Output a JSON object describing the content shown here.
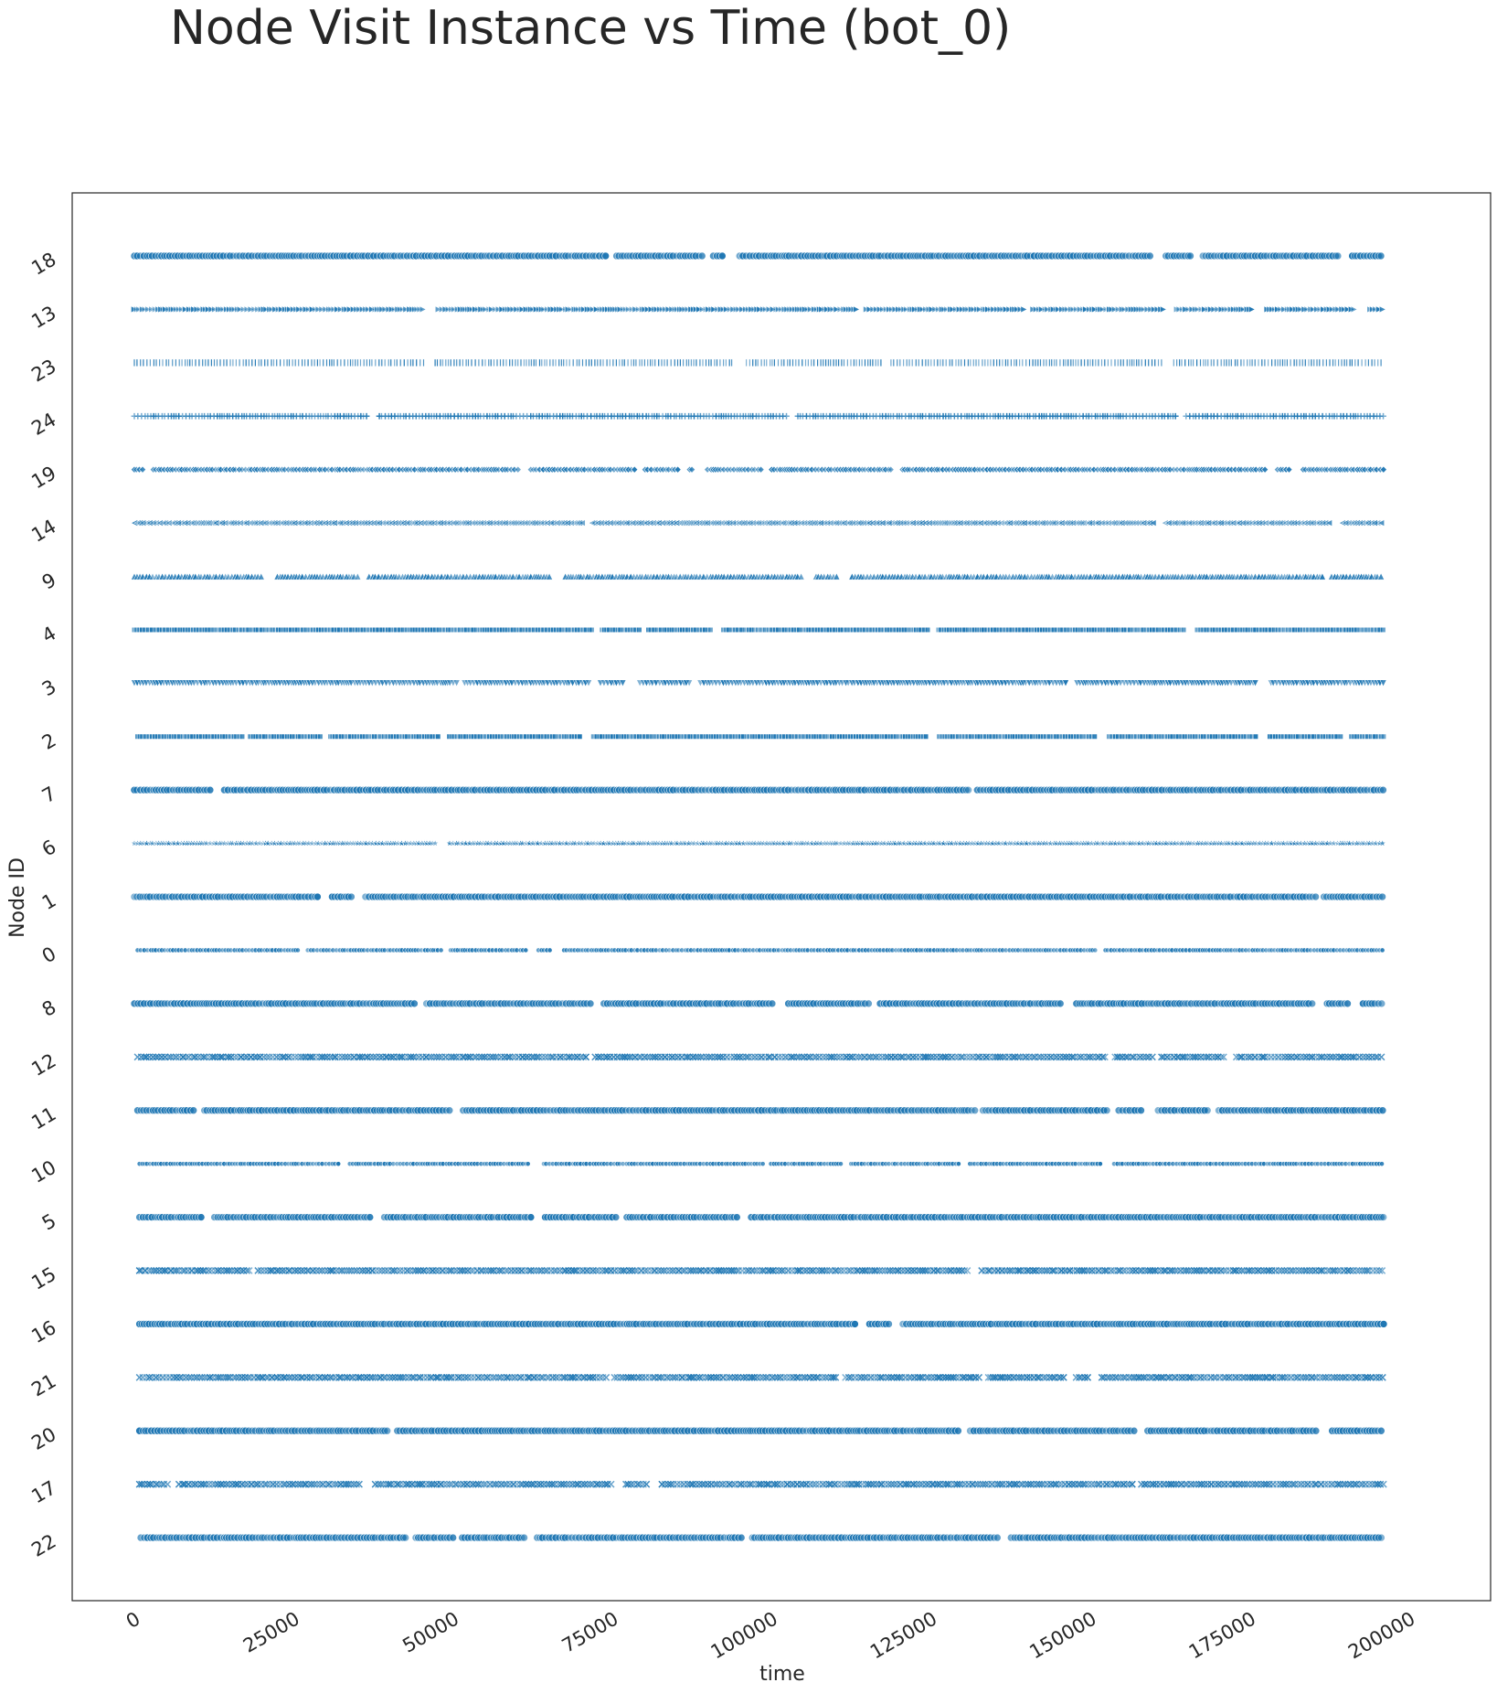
{
  "chart_data": {
    "type": "scatter",
    "title": "Node Visit Instance vs Time (bot_0)",
    "xlabel": "time",
    "ylabel": "Node ID",
    "xlim": [
      -10000,
      208000
    ],
    "x_ticks": [
      0,
      25000,
      50000,
      75000,
      100000,
      125000,
      150000,
      175000,
      200000
    ],
    "x_tick_labels": [
      "0",
      "25000",
      "50000",
      "75000",
      "100000",
      "125000",
      "150000",
      "175000",
      "200000"
    ],
    "y_categories": [
      "18",
      "13",
      "23",
      "24",
      "19",
      "14",
      "9",
      "4",
      "3",
      "2",
      "7",
      "6",
      "1",
      "0",
      "8",
      "12",
      "11",
      "10",
      "5",
      "15",
      "16",
      "21",
      "20",
      "17",
      "22"
    ],
    "grid": false,
    "marker_color": "#1f77b4",
    "time_range": [
      0,
      196000
    ],
    "series": [
      {
        "node": "18",
        "marker": "circle",
        "start": 0,
        "end": 196000
      },
      {
        "node": "13",
        "marker": "triangle-right",
        "start": 0,
        "end": 196000
      },
      {
        "node": "23",
        "marker": "tick-vertical",
        "start": 0,
        "end": 196000
      },
      {
        "node": "24",
        "marker": "plus",
        "start": 0,
        "end": 196000
      },
      {
        "node": "19",
        "marker": "diamond",
        "start": 0,
        "end": 196000
      },
      {
        "node": "14",
        "marker": "triangle-left",
        "start": 0,
        "end": 196000
      },
      {
        "node": "9",
        "marker": "triangle-up",
        "start": 0,
        "end": 196000
      },
      {
        "node": "4",
        "marker": "square",
        "start": 0,
        "end": 196000
      },
      {
        "node": "3",
        "marker": "triangle-down",
        "start": 0,
        "end": 196000
      },
      {
        "node": "2",
        "marker": "square",
        "start": 500,
        "end": 196000
      },
      {
        "node": "7",
        "marker": "circle",
        "start": 0,
        "end": 196000
      },
      {
        "node": "6",
        "marker": "star",
        "start": 0,
        "end": 196000
      },
      {
        "node": "1",
        "marker": "circle",
        "start": 0,
        "end": 196000
      },
      {
        "node": "0",
        "marker": "circle-small",
        "start": 500,
        "end": 196000
      },
      {
        "node": "8",
        "marker": "circle",
        "start": 0,
        "end": 196000
      },
      {
        "node": "12",
        "marker": "x",
        "start": 500,
        "end": 196000
      },
      {
        "node": "11",
        "marker": "circle",
        "start": 500,
        "end": 196000
      },
      {
        "node": "10",
        "marker": "circle-small",
        "start": 800,
        "end": 196000
      },
      {
        "node": "5",
        "marker": "circle",
        "start": 800,
        "end": 196000
      },
      {
        "node": "15",
        "marker": "x",
        "start": 800,
        "end": 196000
      },
      {
        "node": "16",
        "marker": "circle",
        "start": 800,
        "end": 196000
      },
      {
        "node": "21",
        "marker": "x",
        "start": 800,
        "end": 196000
      },
      {
        "node": "20",
        "marker": "circle",
        "start": 800,
        "end": 196000
      },
      {
        "node": "17",
        "marker": "x",
        "start": 800,
        "end": 196000
      },
      {
        "node": "22",
        "marker": "circle",
        "start": 1000,
        "end": 196000
      }
    ]
  }
}
